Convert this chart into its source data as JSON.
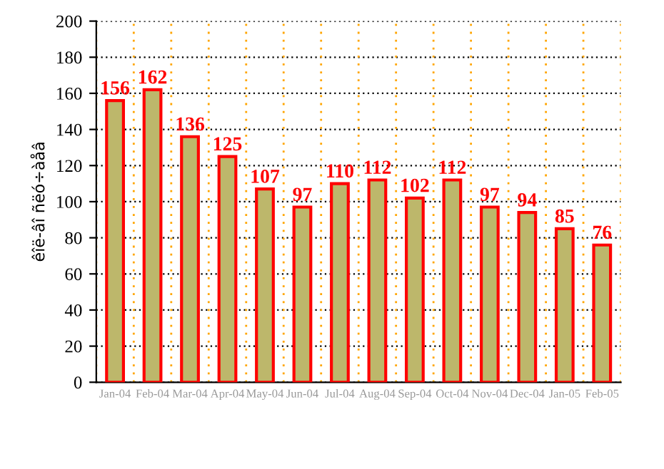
{
  "chart_data": {
    "type": "bar",
    "ylabel": "êîë-âî ñëó÷àåâ",
    "categories": [
      "Jan-04",
      "Feb-04",
      "Mar-04",
      "Apr-04",
      "May-04",
      "Jun-04",
      "Jul-04",
      "Aug-04",
      "Sep-04",
      "Oct-04",
      "Nov-04",
      "Dec-04",
      "Jan-05",
      "Feb-05"
    ],
    "series": [
      {
        "color": "#bdb76b",
        "values": [
          156,
          162,
          136,
          125,
          107,
          97,
          110,
          112,
          102,
          112,
          97,
          94,
          85,
          76
        ]
      }
    ],
    "ylim": [
      0,
      200
    ],
    "yticks": [
      0,
      20,
      40,
      60,
      80,
      100,
      120,
      140,
      160,
      180,
      200
    ],
    "grid": true,
    "data_labels": true
  }
}
